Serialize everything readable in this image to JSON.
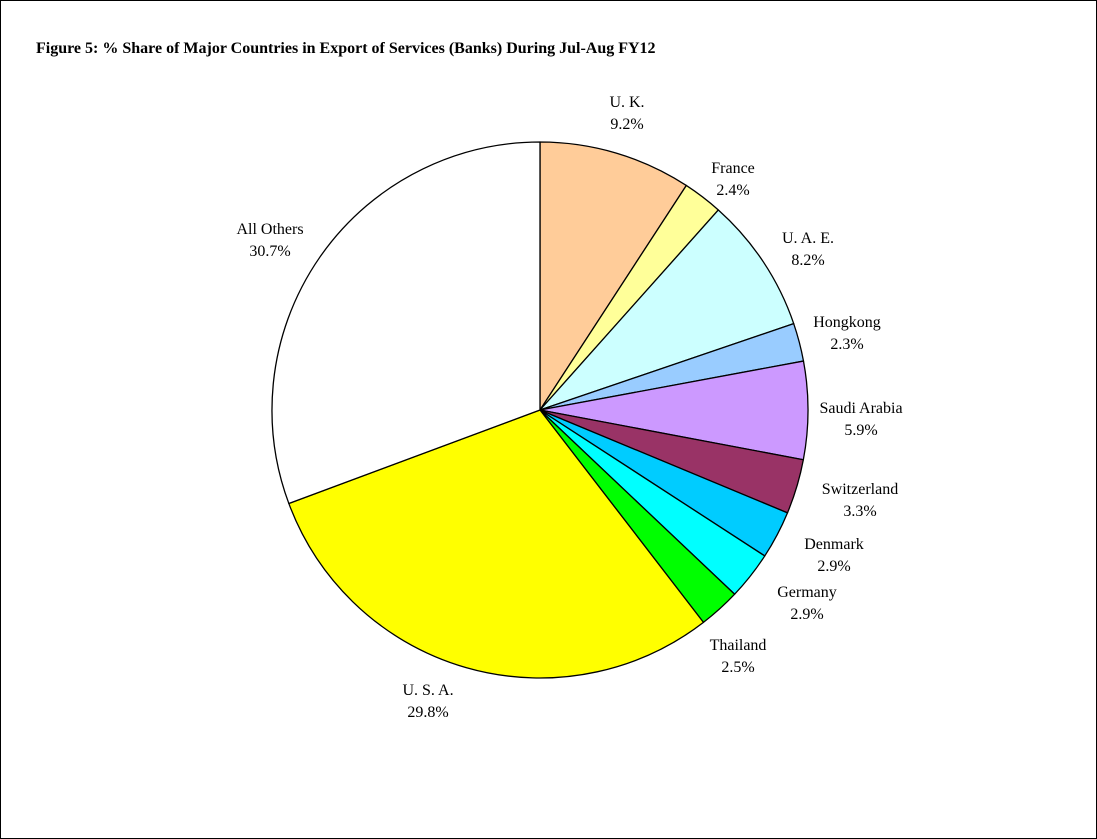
{
  "chart_data": {
    "type": "pie",
    "title": "Figure 5: % Share of Major Countries in Export of Services (Banks) During Jul-Aug FY12",
    "start_angle": "12 o'clock",
    "direction": "clockwise",
    "slices": [
      {
        "label": "U. K.",
        "value": 9.2,
        "value_label": "9.2%",
        "color": "#FFCC99"
      },
      {
        "label": "France",
        "value": 2.4,
        "value_label": "2.4%",
        "color": "#FFFF99"
      },
      {
        "label": "U. A. E.",
        "value": 8.2,
        "value_label": "8.2%",
        "color": "#CCFFFF"
      },
      {
        "label": "Hongkong",
        "value": 2.3,
        "value_label": "2.3%",
        "color": "#99CCFF"
      },
      {
        "label": "Saudi Arabia",
        "value": 5.9,
        "value_label": "5.9%",
        "color": "#CC99FF"
      },
      {
        "label": "Switzerland",
        "value": 3.3,
        "value_label": "3.3%",
        "color": "#993366"
      },
      {
        "label": "Denmark",
        "value": 2.9,
        "value_label": "2.9%",
        "color": "#00CCFF"
      },
      {
        "label": "Germany",
        "value": 2.9,
        "value_label": "2.9%",
        "color": "#00FFFF"
      },
      {
        "label": "Thailand",
        "value": 2.5,
        "value_label": "2.5%",
        "color": "#00FF00"
      },
      {
        "label": "U. S. A.",
        "value": 29.8,
        "value_label": "29.8%",
        "color": "#FFFF00"
      },
      {
        "label": "All Others",
        "value": 30.7,
        "value_label": "30.7%",
        "color": "#FFFFFF"
      }
    ]
  }
}
